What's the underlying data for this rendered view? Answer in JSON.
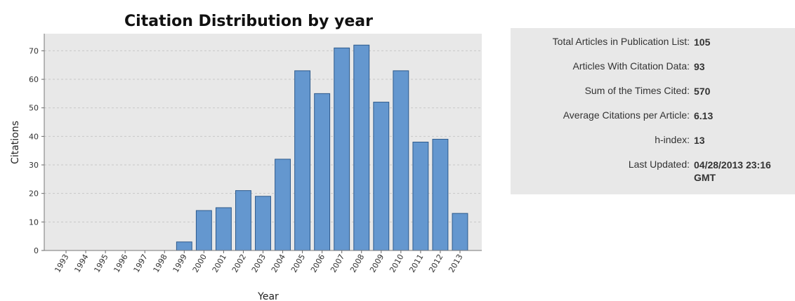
{
  "chart_data": {
    "type": "bar",
    "title": "Citation Distribution by year",
    "xlabel": "Year",
    "ylabel": "Citations",
    "ylim": [
      0,
      76
    ],
    "yticks": [
      0,
      10,
      20,
      30,
      40,
      50,
      60,
      70
    ],
    "grid": true,
    "categories": [
      "1993",
      "1994",
      "1995",
      "1996",
      "1997",
      "1998",
      "1999",
      "2000",
      "2001",
      "2002",
      "2003",
      "2004",
      "2005",
      "2006",
      "2007",
      "2008",
      "2009",
      "2010",
      "2011",
      "2012",
      "2013"
    ],
    "values": [
      0,
      0,
      0,
      0,
      0,
      0,
      3,
      14,
      15,
      21,
      19,
      32,
      63,
      55,
      71,
      72,
      52,
      63,
      38,
      39,
      13
    ],
    "colors": {
      "bar": "#6497cf",
      "bar_stroke": "#2d5a8c",
      "plot_bg": "#e8e8e8",
      "grid": "#c8c8c8"
    }
  },
  "stats": [
    {
      "label": "Total Articles in Publication List:",
      "value": "105"
    },
    {
      "label": "Articles With Citation Data:",
      "value": "93"
    },
    {
      "label": "Sum of the Times Cited:",
      "value": "570"
    },
    {
      "label": "Average Citations per Article:",
      "value": "6.13"
    },
    {
      "label": "h-index:",
      "value": "13"
    },
    {
      "label": "Last Updated:",
      "value": "04/28/2013 23:16 GMT"
    }
  ]
}
